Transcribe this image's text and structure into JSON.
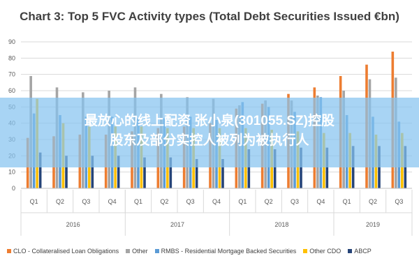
{
  "chart_data": {
    "type": "bar",
    "title": "Chart 3: Top 5 FVC Activity types (Total Debt Securities Issued €bn)",
    "xlabel": "",
    "ylabel": "",
    "ylim": [
      0,
      90
    ],
    "yticks": [
      0,
      10,
      20,
      30,
      40,
      50,
      60,
      70,
      80,
      90
    ],
    "grid": true,
    "legend_position": "bottom",
    "categories": [
      "Q1",
      "Q2",
      "Q3",
      "Q4",
      "Q1",
      "Q2",
      "Q3",
      "Q4",
      "Q1",
      "Q2",
      "Q3",
      "Q4",
      "Q1",
      "Q2",
      "Q3"
    ],
    "year_groups": [
      {
        "label": "2016",
        "count": 4
      },
      {
        "label": "2017",
        "count": 4
      },
      {
        "label": "2018",
        "count": 4
      },
      {
        "label": "2019",
        "count": 3
      }
    ],
    "series": [
      {
        "name": "CLO - Collateralised Loan Obligations",
        "color": "#ED7D31",
        "values": [
          31,
          32,
          33,
          33,
          35,
          37,
          38,
          40,
          49,
          52,
          58,
          62,
          69,
          76,
          84
        ]
      },
      {
        "name": "Other",
        "color": "#A5A5A5",
        "values": [
          69,
          62,
          59,
          60,
          62,
          58,
          56,
          55,
          51,
          54,
          54,
          57,
          60,
          67,
          68
        ]
      },
      {
        "name": "RMBS - Residential Mortgage Backed Securities",
        "color": "#5B9BD5",
        "values": [
          46,
          45,
          44,
          44,
          43,
          43,
          44,
          42,
          53,
          50,
          47,
          56,
          45,
          44,
          41
        ]
      },
      {
        "name": "Other CDO",
        "color": "#FFC000",
        "values": [
          55,
          40,
          38,
          38,
          38,
          37,
          37,
          37,
          37,
          36,
          35,
          34,
          34,
          33,
          34
        ]
      },
      {
        "name": "ABCP",
        "color": "#264478",
        "values": [
          22,
          20,
          20,
          20,
          19,
          19,
          18,
          18,
          24,
          24,
          25,
          25,
          26,
          26,
          26
        ]
      }
    ]
  },
  "overlay": {
    "line1": "最放心的线上配资 张小泉(301055.SZ)控股",
    "line2": "股东及部分实控人被列为被执行人"
  }
}
